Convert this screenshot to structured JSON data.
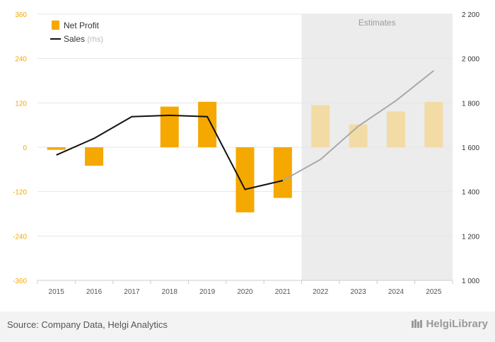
{
  "chart_data": {
    "type": "bar",
    "categories": [
      "2015",
      "2016",
      "2017",
      "2018",
      "2019",
      "2020",
      "2021",
      "2022",
      "2023",
      "2024",
      "2025"
    ],
    "series": [
      {
        "name": "Net Profit",
        "kind": "bar",
        "axis": "left",
        "color": "#f5a800",
        "estimate_color": "#f3dba6",
        "values": [
          -7,
          -50,
          null,
          110,
          123,
          -176,
          -137,
          114,
          62,
          97,
          123
        ]
      },
      {
        "name": "Sales",
        "name_suffix": "(rhs)",
        "kind": "line",
        "axis": "right",
        "color": "#111111",
        "estimate_color": "#a8a8a8",
        "values": [
          1565,
          1640,
          1738,
          1744,
          1738,
          1410,
          1450,
          1545,
          1695,
          1810,
          1945
        ]
      }
    ],
    "estimates_from_index": 7,
    "estimates_label": "Estimates",
    "y_left": {
      "ticks": [
        360,
        240,
        120,
        0,
        -120,
        -240,
        -360
      ],
      "ylim": [
        -360,
        360
      ]
    },
    "y_right": {
      "ticks": [
        "2 200",
        "2 000",
        "1 800",
        "1 600",
        "1 400",
        "1 200",
        "1 000"
      ],
      "ylim": [
        1000,
        2200
      ]
    },
    "grid": true,
    "legend_position": "top-left"
  },
  "footer": {
    "source": "Source: Company Data, Helgi Analytics",
    "brand": "HelgiLibrary"
  }
}
